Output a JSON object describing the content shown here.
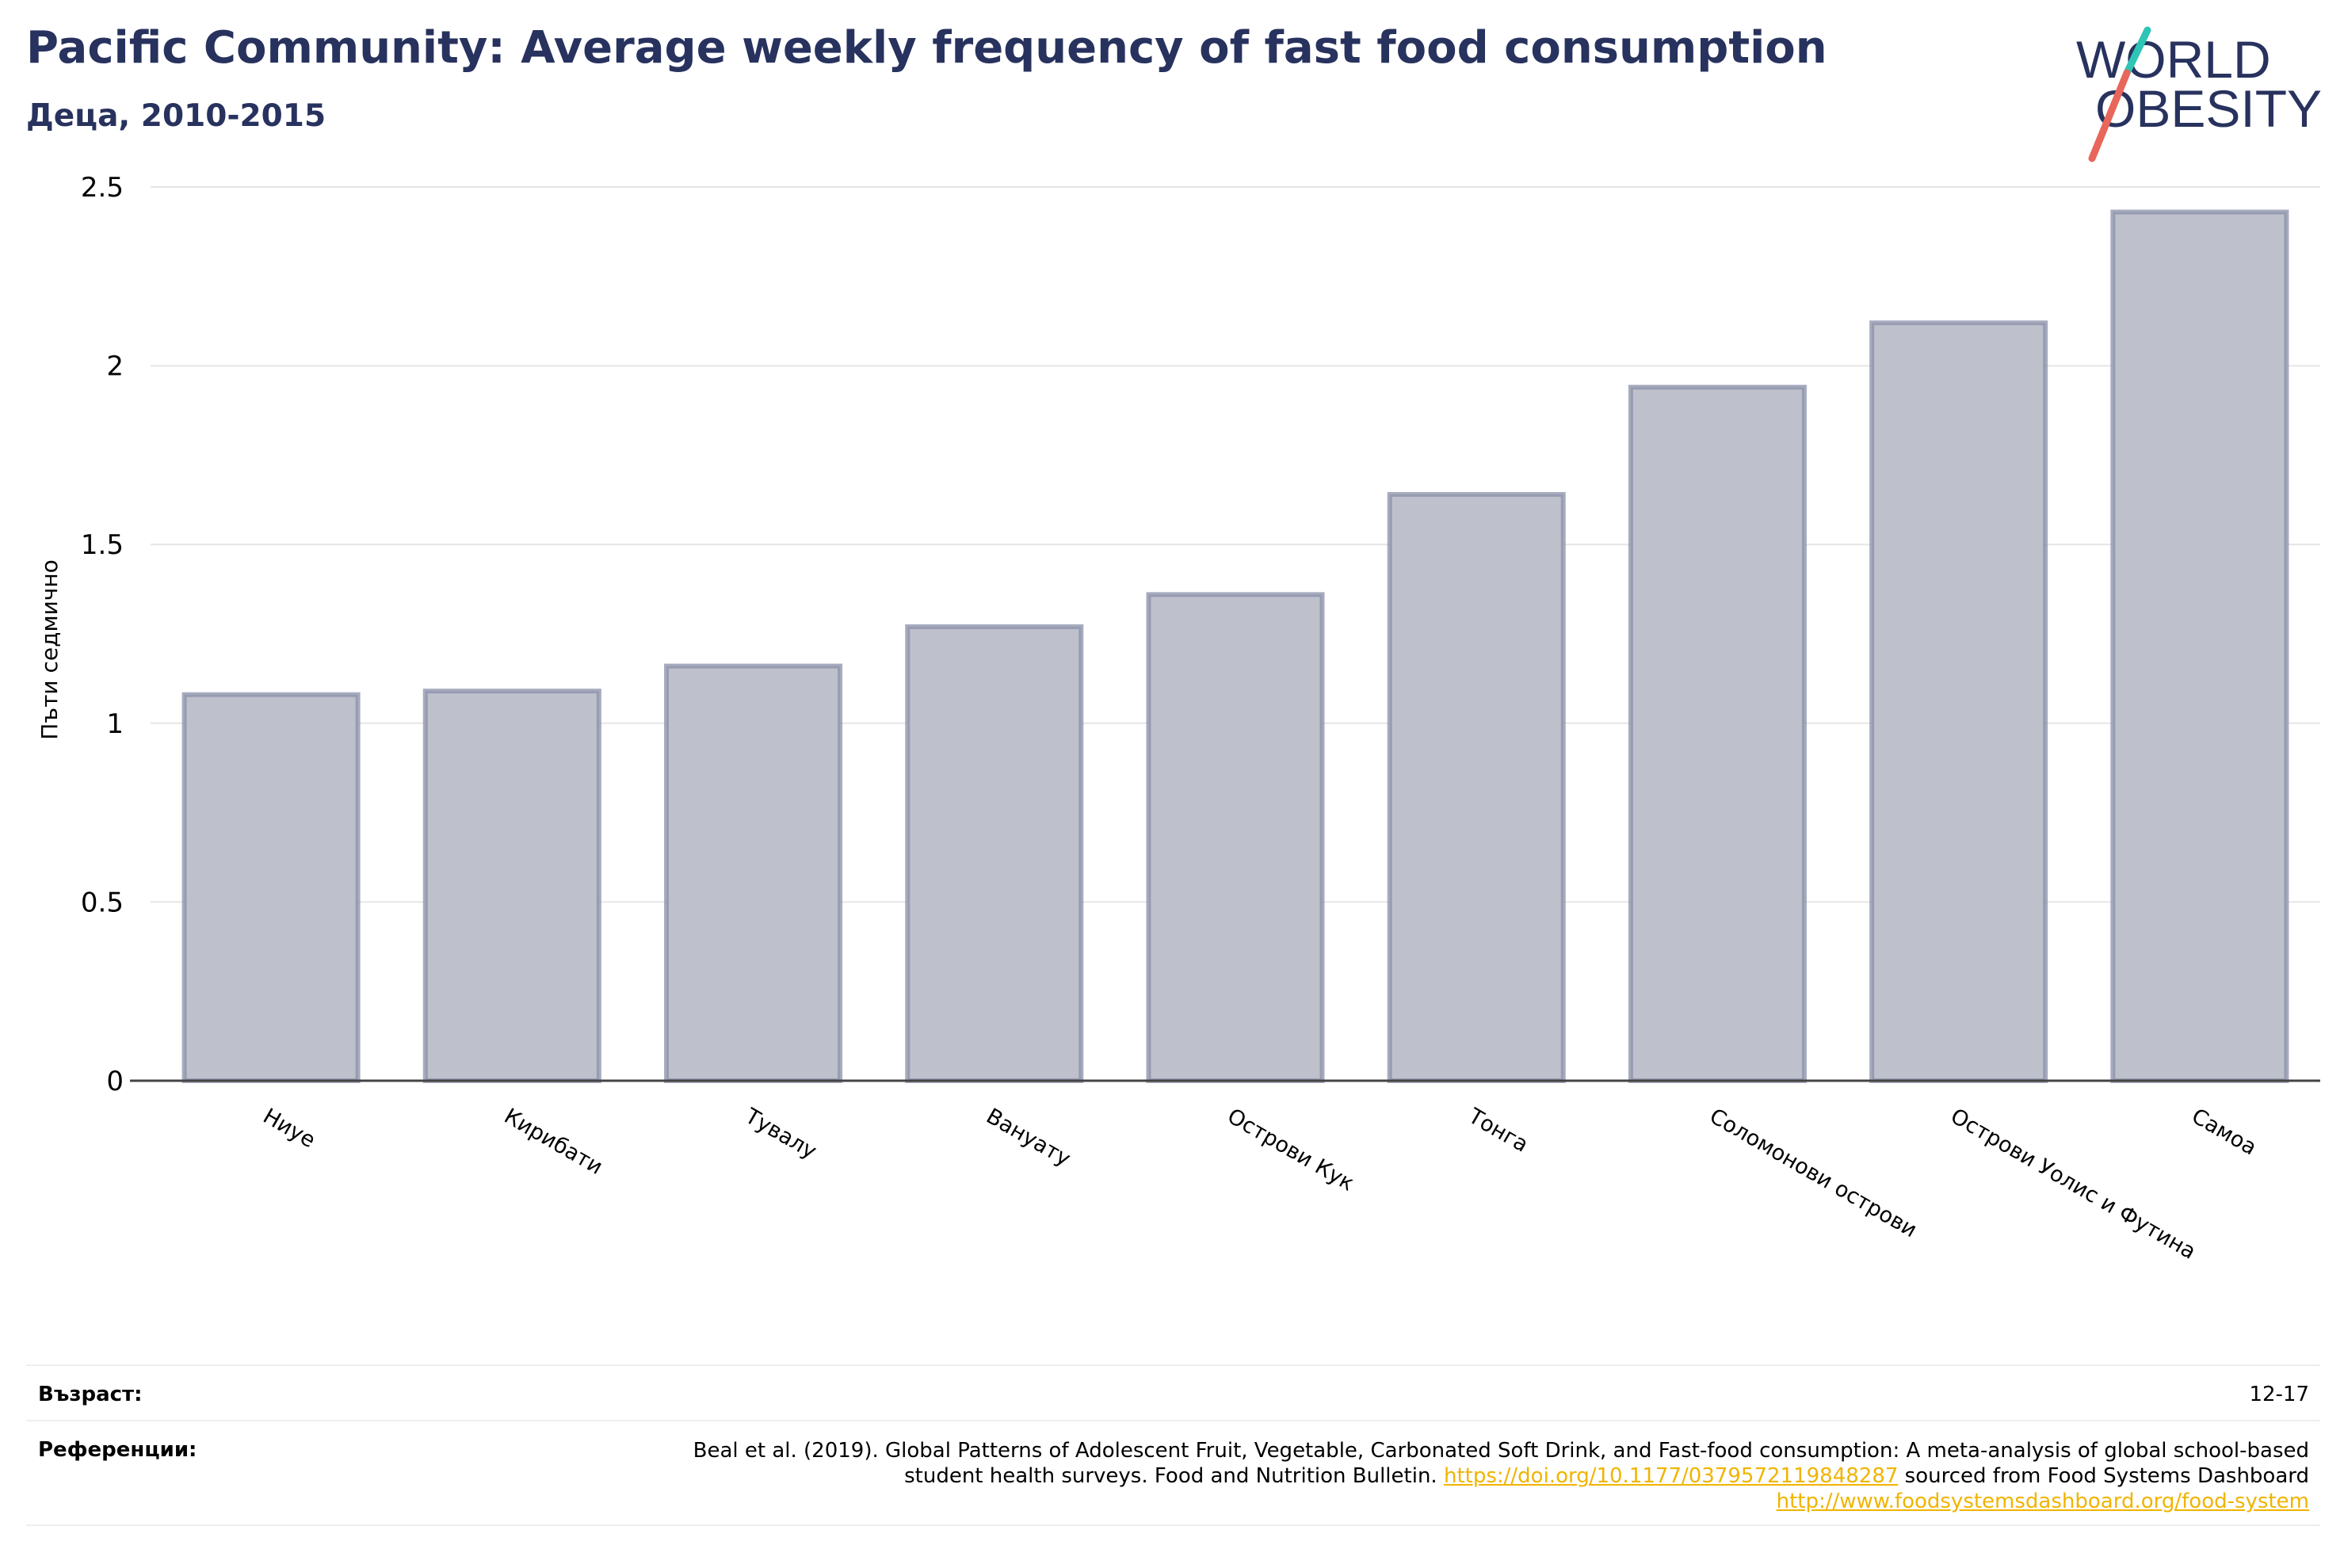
{
  "header": {
    "title": "Pacific Community: Average weekly frequency of fast food consumption",
    "subtitle": "Деца, 2010-2015"
  },
  "logo": {
    "line1": "WORLD",
    "line2": "OBESITY",
    "brand_color": "#28325e",
    "slash_colors": [
      "#2ec4b6",
      "#e8665a"
    ]
  },
  "chart_data": {
    "type": "bar",
    "title": "Pacific Community: Average weekly frequency of fast food consumption",
    "subtitle": "Деца, 2010-2015",
    "xlabel": "",
    "ylabel": "Пъти седмично",
    "categories": [
      "Ниуе",
      "Кирибати",
      "Тувалу",
      "Вануату",
      "Острови Кук",
      "Тонга",
      "Соломонови острови",
      "Острови Уолис и Футина",
      "Самоа"
    ],
    "values": [
      1.08,
      1.09,
      1.16,
      1.27,
      1.36,
      1.64,
      1.94,
      2.12,
      2.43
    ],
    "ylim": [
      0,
      2.5
    ],
    "yticks": [
      0,
      0.5,
      1,
      1.5,
      2,
      2.5
    ],
    "ytick_labels": [
      "0",
      "0.5",
      "1",
      "1.5",
      "2",
      "2.5"
    ],
    "grid": true,
    "bar_fill": "#bec1cc",
    "bar_stroke": "#8a8fa8"
  },
  "footer": {
    "age_label": "Възраст:",
    "age_value": "12-17",
    "ref_label": "Референции:",
    "ref_text_1": "Beal et al. (2019). Global Patterns of Adolescent Fruit, Vegetable, Carbonated Soft Drink, and Fast-food consumption: A meta-analysis of global school-based student health surveys. Food and Nutrition Bulletin. ",
    "ref_link_1": "https://doi.org/10.1177/0379572119848287",
    "ref_text_2": " sourced from Food Systems Dashboard ",
    "ref_link_2": "http://www.foodsystemsdashboard.org/food-system"
  }
}
